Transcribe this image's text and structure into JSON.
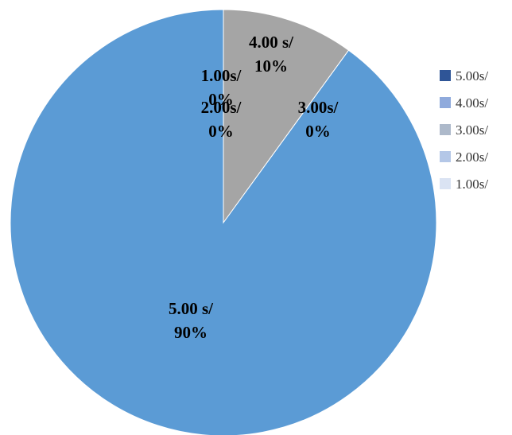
{
  "chart_data": {
    "type": "pie",
    "title": "",
    "slices": [
      {
        "label": "5.00 s/",
        "percent_label": "90%",
        "value": 90,
        "color": "#5b9bd5"
      },
      {
        "label": "4.00 s/",
        "percent_label": "10%",
        "value": 10,
        "color": "#a5a5a5"
      },
      {
        "label": "3.00s/",
        "percent_label": "0%",
        "value": 0,
        "color": "#c9c9c9"
      },
      {
        "label": "2.00s/",
        "percent_label": "0%",
        "value": 0,
        "color": "#b4c7e7"
      },
      {
        "label": "1.00s/",
        "percent_label": "0%",
        "value": 0,
        "color": "#dae3f3"
      }
    ],
    "legend": {
      "position": "right",
      "entries": [
        {
          "label": "5.00s/",
          "color": "#2f5597"
        },
        {
          "label": "4.00s/",
          "color": "#8faadc"
        },
        {
          "label": "3.00s/",
          "color": "#adb9ca"
        },
        {
          "label": "2.00s/",
          "color": "#b4c7e7"
        },
        {
          "label": "1.00s/",
          "color": "#dae3f3"
        }
      ]
    }
  }
}
